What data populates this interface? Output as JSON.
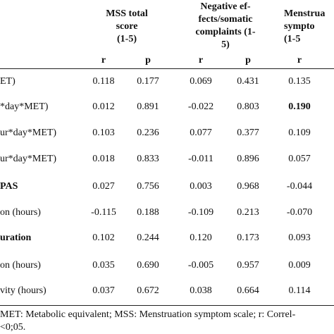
{
  "table": {
    "header_groups": [
      {
        "lines": [
          "MSS total",
          "score",
          "(1-5)"
        ]
      },
      {
        "lines": [
          "Negative ef-",
          "fects/somatic",
          "complaints (1-",
          "5)"
        ]
      },
      {
        "lines": [
          "Menstrua",
          "sympto",
          "(1-5"
        ]
      }
    ],
    "subheaders": [
      "r",
      "p",
      "r",
      "p",
      "r"
    ],
    "rows": [
      {
        "label": "ET)",
        "label_bold": false,
        "cells": [
          "0.118",
          "0.177",
          "0.069",
          "0.431",
          "0.135"
        ],
        "bold_cell": null
      },
      {
        "label": "*day*MET)",
        "label_bold": false,
        "cells": [
          "0.012",
          "0.891",
          "-0.022",
          "0.803",
          "0.190"
        ],
        "bold_cell": 4
      },
      {
        "label": "ur*day*MET)",
        "label_bold": false,
        "cells": [
          "0.103",
          "0.236",
          "0.077",
          "0.377",
          "0.109"
        ],
        "bold_cell": null
      },
      {
        "label": "ur*day*MET)",
        "label_bold": false,
        "cells": [
          "0.018",
          "0.833",
          "-0.011",
          "0.896",
          "0.057"
        ],
        "bold_cell": null
      },
      {
        "label": "PAS",
        "label_bold": true,
        "cells": [
          "0.027",
          "0.756",
          "0.003",
          "0.968",
          "-0.044"
        ],
        "bold_cell": null
      },
      {
        "label": "on (hours)",
        "label_bold": false,
        "cells": [
          "-0.115",
          "0.188",
          "-0.109",
          "0.213",
          "-0.070"
        ],
        "bold_cell": null
      },
      {
        "label": "uration",
        "label_bold": true,
        "cells": [
          "0.102",
          "0.244",
          "0.120",
          "0.173",
          "0.093"
        ],
        "bold_cell": null
      },
      {
        "label": "on (hours)",
        "label_bold": false,
        "cells": [
          "0.035",
          "0.690",
          "-0.005",
          "0.957",
          "0.009"
        ],
        "bold_cell": null
      },
      {
        "label": "vity (hours)",
        "label_bold": false,
        "cells": [
          "0.037",
          "0.672",
          "0.038",
          "0.664",
          "0.114"
        ],
        "bold_cell": null
      }
    ],
    "footnote": [
      "MET: Metabolic equivalent; MSS: Menstruation symptom scale; r: Correl-",
      "<0;05."
    ]
  }
}
